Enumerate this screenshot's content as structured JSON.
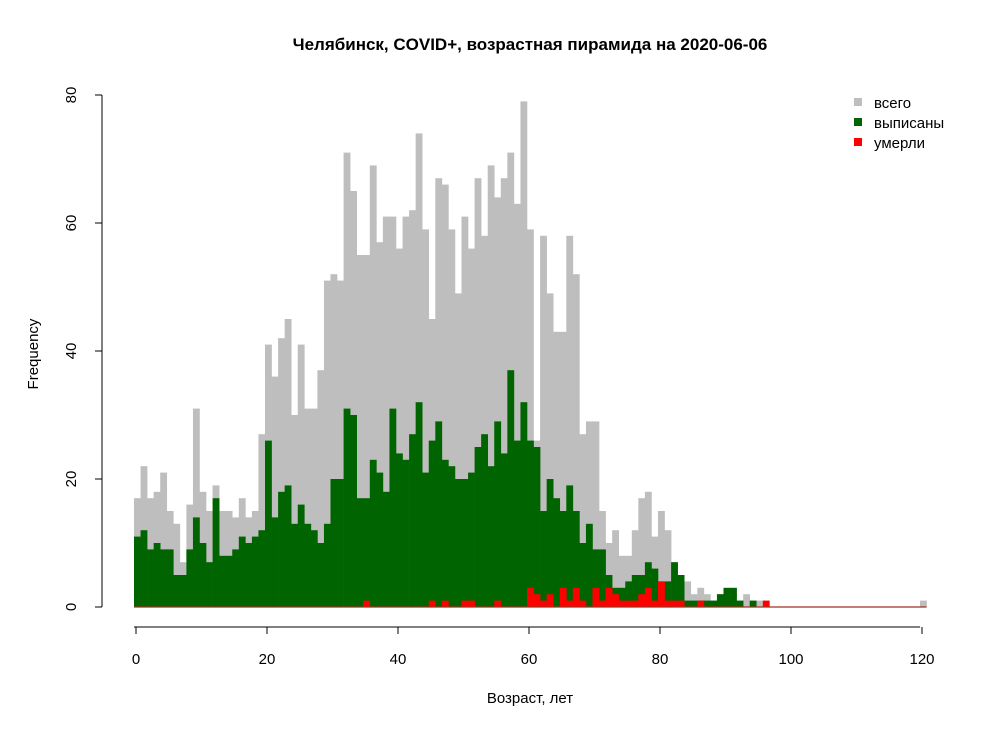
{
  "chart_data": {
    "type": "bar",
    "title": "Челябинск, COVID+, возрастная пирамида на 2020-06-06",
    "xlabel": "Возраст, лет",
    "ylabel": "Frequency",
    "xlim": [
      0,
      121
    ],
    "ylim": [
      0,
      80
    ],
    "x_ticks": [
      "0",
      "20",
      "40",
      "60",
      "80",
      "100",
      "120"
    ],
    "y_ticks": [
      "0",
      "20",
      "40",
      "60",
      "80"
    ],
    "legend_position": "top-right",
    "series": [
      {
        "name": "всего",
        "color": "#bebebe",
        "values": [
          17,
          22,
          17,
          18,
          21,
          15,
          13,
          7,
          16,
          31,
          18,
          15,
          19,
          15,
          15,
          14,
          17,
          14,
          15,
          27,
          41,
          36,
          42,
          45,
          30,
          41,
          31,
          31,
          37,
          51,
          52,
          51,
          71,
          65,
          55,
          55,
          69,
          57,
          61,
          61,
          56,
          61,
          62,
          74,
          59,
          45,
          67,
          66,
          59,
          49,
          61,
          56,
          67,
          58,
          69,
          64,
          67,
          71,
          63,
          79,
          59,
          26,
          58,
          49,
          43,
          43,
          58,
          52,
          27,
          29,
          29,
          15,
          10,
          12,
          8,
          8,
          12,
          17,
          18,
          11,
          15,
          12,
          7,
          4,
          4,
          2,
          3,
          2,
          1,
          2,
          1,
          1,
          1,
          2,
          1,
          1,
          1,
          0,
          0,
          0,
          0,
          0,
          0,
          0,
          0,
          0,
          0,
          0,
          0,
          0,
          0,
          0,
          0,
          0,
          0,
          0,
          0,
          0,
          0,
          0,
          1
        ]
      },
      {
        "name": "выписаны",
        "color": "#006400",
        "values": [
          11,
          12,
          9,
          10,
          9,
          9,
          5,
          5,
          9,
          14,
          10,
          7,
          17,
          8,
          8,
          9,
          11,
          10,
          11,
          12,
          26,
          14,
          18,
          19,
          13,
          16,
          13,
          12,
          10,
          13,
          20,
          20,
          31,
          30,
          17,
          17,
          23,
          21,
          18,
          31,
          24,
          23,
          27,
          32,
          21,
          26,
          29,
          23,
          22,
          20,
          20,
          21,
          25,
          27,
          22,
          29,
          24,
          37,
          26,
          32,
          26,
          25,
          15,
          20,
          17,
          15,
          19,
          15,
          10,
          13,
          9,
          9,
          5,
          3,
          3,
          4,
          5,
          5,
          7,
          6,
          4,
          4,
          7,
          5,
          1,
          1,
          1,
          1,
          1,
          2,
          3,
          3,
          1,
          0,
          1,
          0,
          0,
          0,
          0,
          0,
          0,
          0,
          0,
          0,
          0,
          0,
          0,
          0,
          0,
          0,
          0,
          0,
          0,
          0,
          0,
          0,
          0,
          0,
          0,
          0,
          0
        ]
      },
      {
        "name": "умерли",
        "color": "#ff0000",
        "values": [
          0,
          0,
          0,
          0,
          0,
          0,
          0,
          0,
          0,
          0,
          0,
          0,
          0,
          0,
          0,
          0,
          0,
          0,
          0,
          0,
          0,
          0,
          0,
          0,
          0,
          0,
          0,
          0,
          0,
          0,
          0,
          0,
          0,
          0,
          0,
          1,
          0,
          0,
          0,
          0,
          0,
          0,
          0,
          0,
          0,
          1,
          0,
          1,
          0,
          0,
          1,
          1,
          0,
          0,
          0,
          1,
          0,
          0,
          0,
          0,
          3,
          2,
          1,
          2,
          0,
          3,
          1,
          3,
          1,
          0,
          3,
          1,
          3,
          2,
          1,
          1,
          1,
          2,
          3,
          1,
          4,
          1,
          1,
          1,
          0,
          0,
          1,
          0,
          0,
          0,
          0,
          0,
          0,
          0,
          0,
          0,
          1,
          0,
          0,
          0,
          0,
          0,
          0,
          0,
          0,
          0,
          0,
          0,
          0,
          0,
          0,
          0,
          0,
          0,
          0,
          0,
          0,
          0,
          0,
          0,
          0
        ]
      }
    ]
  }
}
